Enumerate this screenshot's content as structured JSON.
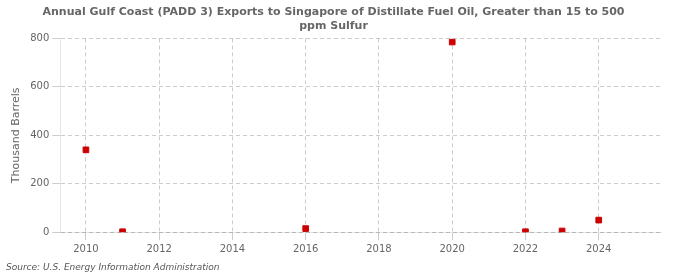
{
  "chart_data": {
    "type": "scatter",
    "title": "Annual Gulf Coast (PADD 3) Exports to Singapore of Distillate Fuel Oil, Greater than 15 to 500\nppm Sulfur",
    "ylabel": "Thousand Barrels",
    "source": "Source: U.S. Energy Information Administration",
    "x": [
      2010,
      2011,
      2016,
      2020,
      2022,
      2023,
      2024
    ],
    "values": [
      340,
      2,
      15,
      785,
      2,
      5,
      50
    ],
    "color": "#cc0000",
    "marker": "square",
    "xlim": [
      2009.3,
      2025.7
    ],
    "xticks": [
      2010,
      2012,
      2014,
      2016,
      2018,
      2020,
      2022,
      2024
    ],
    "ylim": [
      0,
      800
    ],
    "yticks": [
      0,
      200,
      400,
      600,
      800
    ],
    "grid": true
  }
}
